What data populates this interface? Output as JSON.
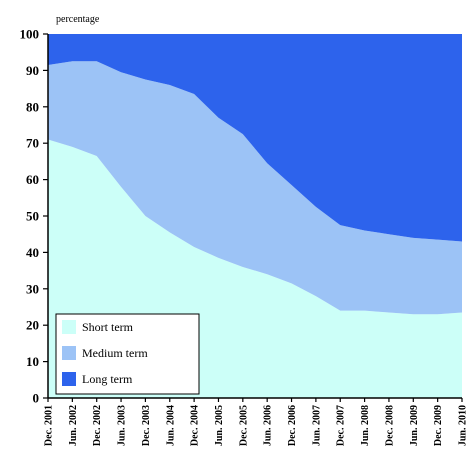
{
  "chart_data": {
    "type": "area",
    "stacked": true,
    "title": "",
    "unit_label": "percentage",
    "xlabel": "",
    "ylabel": "",
    "ylim": [
      0,
      100
    ],
    "y_ticks": [
      0,
      10,
      20,
      30,
      40,
      50,
      60,
      70,
      80,
      90,
      100
    ],
    "grid": false,
    "legend_position": "bottom-left",
    "x_tick_labels": [
      "Dec. 2001",
      "Jun. 2002",
      "Dec. 2002",
      "Jun. 2003",
      "Dec. 2003",
      "Jun. 2004",
      "Dec. 2004",
      "Jun. 2005",
      "Dec. 2005",
      "Jun. 2006",
      "Dec. 2006",
      "Jun. 2007",
      "Dec. 2007",
      "Jun. 2008",
      "Dec. 2008",
      "Jun. 2009",
      "Dec. 2009",
      "Jun. 2010"
    ],
    "x": [
      "Dec. 2001",
      "Jun. 2002",
      "Dec. 2002",
      "Jun. 2003",
      "Dec. 2003",
      "Jun. 2004",
      "Dec. 2004",
      "Jun. 2005",
      "Dec. 2005",
      "Jun. 2006",
      "Dec. 2006",
      "Jun. 2007",
      "Dec. 2007",
      "Jun. 2008",
      "Dec. 2008",
      "Jun. 2009",
      "Dec. 2009",
      "Jun. 2010"
    ],
    "series": [
      {
        "name": "Short term",
        "color": "#ccfff8",
        "values": [
          71,
          69,
          66.5,
          58,
          50,
          45.5,
          41.5,
          38.5,
          36,
          34,
          31.5,
          28,
          24,
          24,
          23.5,
          23,
          23,
          23.5
        ]
      },
      {
        "name": "Medium term",
        "color": "#9cc3f6",
        "values": [
          20.5,
          23.5,
          26,
          31.5,
          37.5,
          40.5,
          42,
          38.5,
          36.5,
          30.5,
          27,
          24.5,
          23.5,
          22,
          21.5,
          21,
          20.5,
          19.5
        ]
      },
      {
        "name": "Long term",
        "color": "#2d63ec",
        "values": [
          8.5,
          7.5,
          7.5,
          10.5,
          12.5,
          14,
          16.5,
          23,
          27.5,
          35.5,
          41.5,
          47.5,
          52.5,
          54,
          55,
          56,
          56.5,
          57
        ]
      }
    ]
  }
}
